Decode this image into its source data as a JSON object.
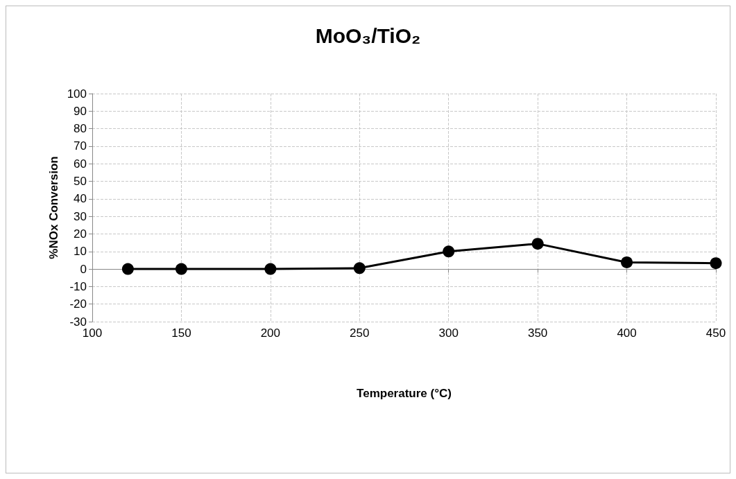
{
  "chart_data": {
    "type": "line",
    "title": "MoO₃/TiO₂",
    "xlabel": "Temperature (°C)",
    "ylabel": "%NOx Conversion",
    "x": [
      120,
      150,
      200,
      250,
      300,
      350,
      400,
      450
    ],
    "series": [
      {
        "color": "#000000",
        "values": [
          0,
          0,
          0,
          0.5,
          10,
          14.4,
          3.8,
          3.3
        ]
      }
    ],
    "xlim": [
      100,
      450
    ],
    "xticks": [
      100,
      150,
      200,
      250,
      300,
      350,
      400,
      450
    ],
    "ylim": [
      -30,
      100
    ],
    "yticks": [
      -30,
      -20,
      -10,
      0,
      10,
      20,
      30,
      40,
      50,
      60,
      70,
      80,
      90,
      100
    ],
    "grid": true,
    "marker": "circle",
    "line_style": "solid"
  }
}
